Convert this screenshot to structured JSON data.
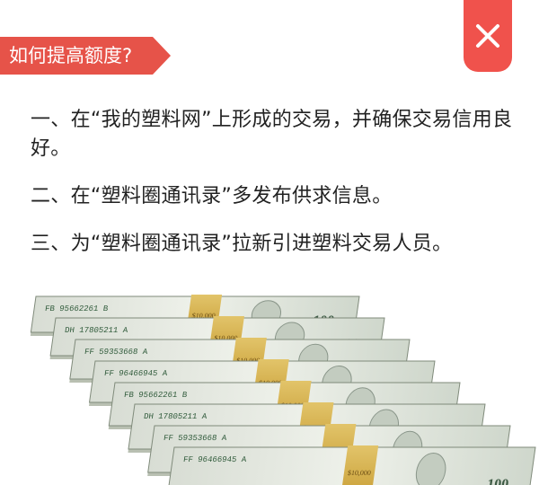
{
  "header": {
    "title": "如何提高额度?"
  },
  "close_button": {
    "icon": "close-icon",
    "color": "#f0524c"
  },
  "items": [
    "一、在“我的塑料网”上形成的交易，并确保交易信用良好。",
    "二、在“塑料圈通讯录”多发布供求信息。",
    "三、为“塑料圈通讯录”拉新引进塑料交易人员。"
  ],
  "illustration": {
    "name": "money-stacks-image",
    "note_text": {
      "banknote_denomination": "100",
      "band_label": "$10,000",
      "serials": [
        "FF 96466945 A",
        "FF 59353668 A",
        "DH 17805211 A",
        "FB 95662261 B"
      ]
    }
  }
}
